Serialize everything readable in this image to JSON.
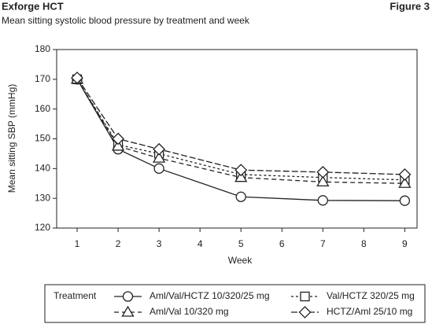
{
  "chart_data": {
    "type": "line",
    "header": "Exforge HCT",
    "figure_label": "Figure 3",
    "title": "Mean sitting systolic blood pressure by treatment and week",
    "x_label": "Week",
    "y_label": "Mean sitting SBP (mmHg)",
    "legend_title": "Treatment",
    "x": [
      1,
      2,
      3,
      5,
      7,
      9
    ],
    "xlim": [
      0.5,
      9.3
    ],
    "xticks": [
      1,
      2,
      3,
      4,
      5,
      6,
      7,
      8,
      9
    ],
    "ylim": [
      120,
      180
    ],
    "yticks": [
      120,
      130,
      140,
      150,
      160,
      170,
      180
    ],
    "series": [
      {
        "name": "Aml/Val/HCTZ 10/320/25 mg",
        "color": "#222222",
        "marker": "circle",
        "dash": "none",
        "values": [
          170,
          146.5,
          140,
          130.5,
          129.3,
          129.2
        ]
      },
      {
        "name": "Val/HCTZ 320/25 mg",
        "color": "#222222",
        "marker": "square",
        "dash": "3,3",
        "values": [
          170,
          148,
          145,
          138,
          137,
          136.2
        ]
      },
      {
        "name": "Aml/Val 10/320 mg",
        "color": "#222222",
        "marker": "triangle",
        "dash": "6,4",
        "values": [
          170,
          147.5,
          143.5,
          137,
          135.5,
          135
        ]
      },
      {
        "name": "HCTZ/Aml 25/10 mg",
        "color": "#222222",
        "marker": "diamond",
        "dash": "8,3",
        "values": [
          170.5,
          150,
          146.5,
          139.5,
          138.8,
          138
        ]
      }
    ]
  }
}
